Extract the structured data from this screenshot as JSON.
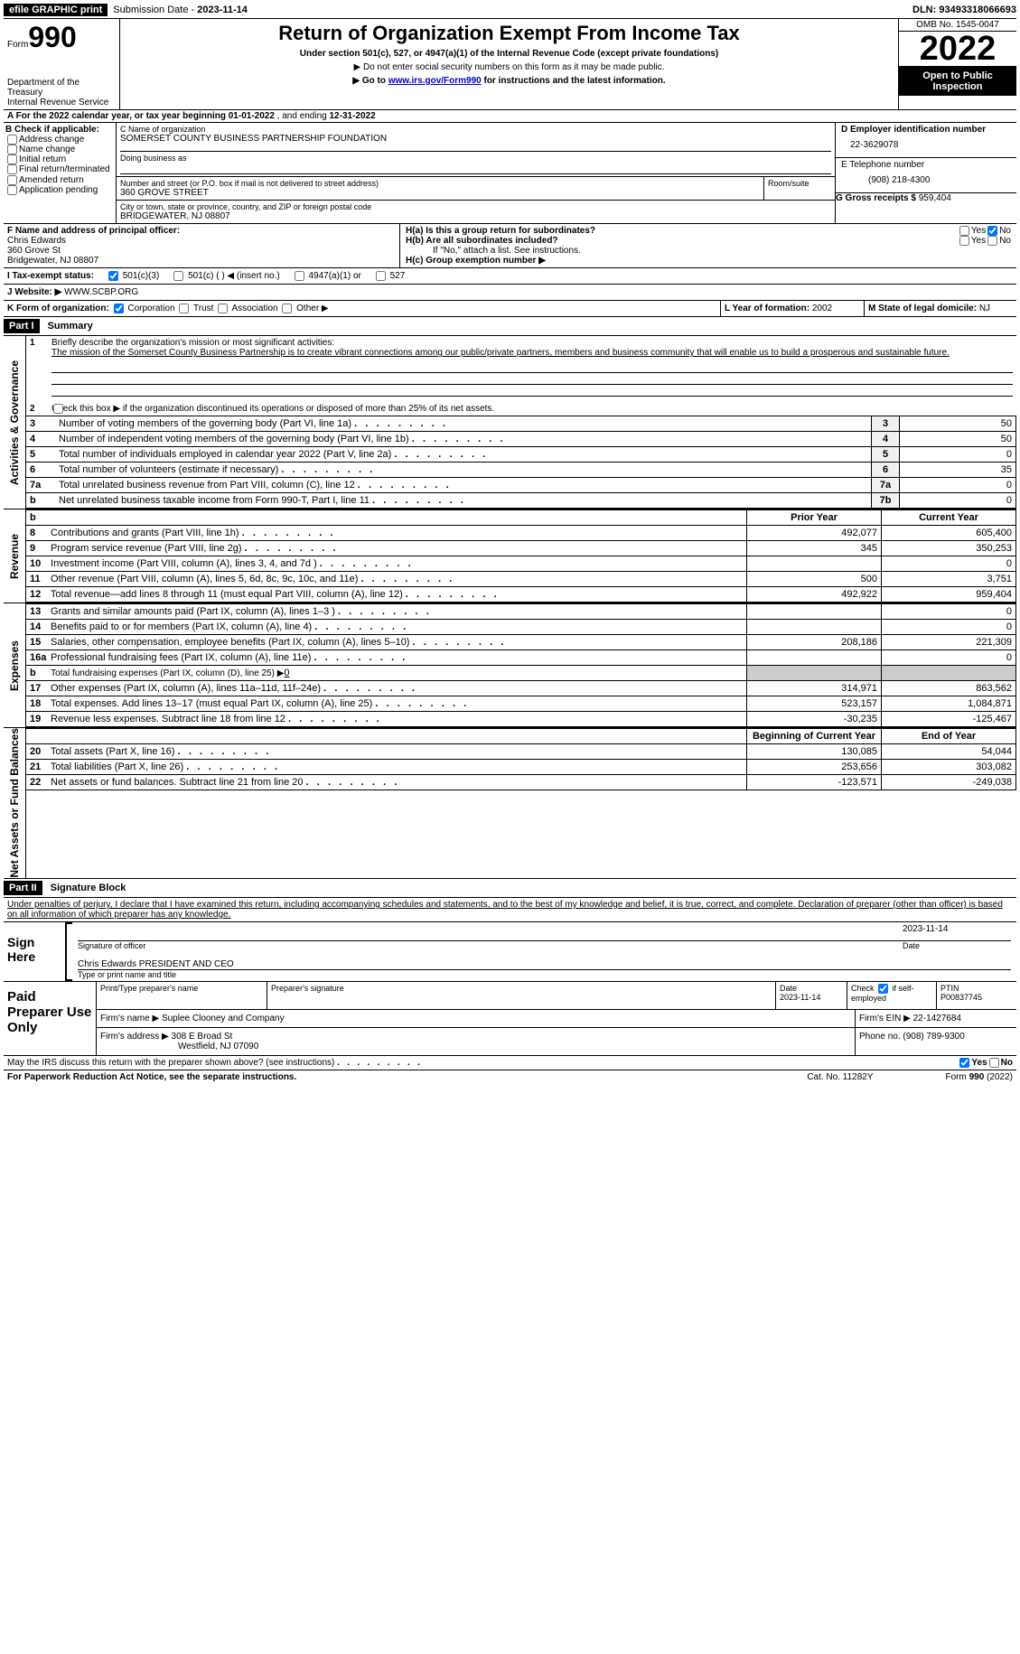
{
  "top_bar": {
    "efile": "efile GRAPHIC print",
    "sub_label": "Submission Date - ",
    "sub_date": "2023-11-14",
    "dln_label": "DLN: ",
    "dln": "93493318066693"
  },
  "header": {
    "form_word": "Form",
    "form_num": "990",
    "dept": "Department of the Treasury",
    "irs": "Internal Revenue Service",
    "title": "Return of Organization Exempt From Income Tax",
    "subtitle": "Under section 501(c), 527, or 4947(a)(1) of the Internal Revenue Code (except private foundations)",
    "note1": "▶ Do not enter social security numbers on this form as it may be made public.",
    "note2_pre": "▶ Go to ",
    "note2_link": "www.irs.gov/Form990",
    "note2_post": " for instructions and the latest information.",
    "omb": "OMB No. 1545-0047",
    "year": "2022",
    "open": "Open to Public Inspection"
  },
  "A": {
    "line": "A For the 2022 calendar year, or tax year beginning ",
    "begin": "01-01-2022",
    "mid": "  , and ending ",
    "end": "12-31-2022"
  },
  "B": {
    "label": "B Check if applicable:",
    "c1": "Address change",
    "c2": "Name change",
    "c3": "Initial return",
    "c4": "Final return/terminated",
    "c5": "Amended return",
    "c6": "Application pending"
  },
  "C": {
    "name_label": "C Name of organization",
    "name": "SOMERSET COUNTY BUSINESS PARTNERSHIP FOUNDATION",
    "dba_label": "Doing business as",
    "addr_label": "Number and street (or P.O. box if mail is not delivered to street address)",
    "room_label": "Room/suite",
    "addr": "360 GROVE STREET",
    "city_label": "City or town, state or province, country, and ZIP or foreign postal code",
    "city": "BRIDGEWATER, NJ  08807"
  },
  "D": {
    "label": "D Employer identification number",
    "val": "22-3629078"
  },
  "E": {
    "label": "E Telephone number",
    "val": "(908) 218-4300"
  },
  "G": {
    "label": "G Gross receipts $ ",
    "val": "959,404"
  },
  "F": {
    "label": "F  Name and address of principal officer:",
    "l1": "Chris Edwards",
    "l2": "360 Grove St",
    "l3": "Bridgewater, NJ  08807"
  },
  "H": {
    "a": "H(a)  Is this a group return for subordinates?",
    "b": "H(b)  Are all subordinates included?",
    "b_note": "If \"No,\" attach a list. See instructions.",
    "c": "H(c)  Group exemption number ▶"
  },
  "I": {
    "label": "I   Tax-exempt status:",
    "c1": "501(c)(3)",
    "c2": "501(c) (  ) ◀ (insert no.)",
    "c3": "4947(a)(1) or",
    "c4": "527"
  },
  "J": {
    "label": "J   Website: ▶",
    "val": "  WWW.SCBP.ORG"
  },
  "K": {
    "label": "K Form of organization:",
    "c1": "Corporation",
    "c2": "Trust",
    "c3": "Association",
    "c4": "Other ▶"
  },
  "L": {
    "label": "L Year of formation: ",
    "val": "2002"
  },
  "M": {
    "label": "M State of legal domicile: ",
    "val": "NJ"
  },
  "part1": {
    "label": "Part I",
    "title": "Summary"
  },
  "sec1": {
    "vert": "Activities & Governance",
    "l1": "Briefly describe the organization's mission or most significant activities:",
    "mission": "The mission of the Somerset County Business Partnership is to create vibrant connections among our public/private partners, members and business community that will enable us to build a prosperous and sustainable future.",
    "l2": "Check this box ▶      if the organization discontinued its operations or disposed of more than 25% of its net assets.",
    "rows": [
      {
        "n": "3",
        "t": "Number of voting members of the governing body (Part VI, line 1a)",
        "b": "3",
        "v": "50"
      },
      {
        "n": "4",
        "t": "Number of independent voting members of the governing body (Part VI, line 1b)",
        "b": "4",
        "v": "50"
      },
      {
        "n": "5",
        "t": "Total number of individuals employed in calendar year 2022 (Part V, line 2a)",
        "b": "5",
        "v": "0"
      },
      {
        "n": "6",
        "t": "Total number of volunteers (estimate if necessary)",
        "b": "6",
        "v": "35"
      },
      {
        "n": "7a",
        "t": "Total unrelated business revenue from Part VIII, column (C), line 12",
        "b": "7a",
        "v": "0"
      },
      {
        "n": "b",
        "t": "Net unrelated business taxable income from Form 990-T, Part I, line 11",
        "b": "7b",
        "v": "0"
      }
    ]
  },
  "cols": {
    "b": "b",
    "py": "Prior Year",
    "cy": "Current Year",
    "bcy": "Beginning of Current Year",
    "eoy": "End of Year"
  },
  "rev": {
    "vert": "Revenue",
    "rows": [
      {
        "n": "8",
        "t": "Contributions and grants (Part VIII, line 1h)",
        "py": "492,077",
        "cy": "605,400"
      },
      {
        "n": "9",
        "t": "Program service revenue (Part VIII, line 2g)",
        "py": "345",
        "cy": "350,253"
      },
      {
        "n": "10",
        "t": "Investment income (Part VIII, column (A), lines 3, 4, and 7d )",
        "py": "",
        "cy": "0"
      },
      {
        "n": "11",
        "t": "Other revenue (Part VIII, column (A), lines 5, 6d, 8c, 9c, 10c, and 11e)",
        "py": "500",
        "cy": "3,751"
      },
      {
        "n": "12",
        "t": "Total revenue—add lines 8 through 11 (must equal Part VIII, column (A), line 12)",
        "py": "492,922",
        "cy": "959,404"
      }
    ]
  },
  "exp": {
    "vert": "Expenses",
    "rows": [
      {
        "n": "13",
        "t": "Grants and similar amounts paid (Part IX, column (A), lines 1–3 )",
        "py": "",
        "cy": "0"
      },
      {
        "n": "14",
        "t": "Benefits paid to or for members (Part IX, column (A), line 4)",
        "py": "",
        "cy": "0"
      },
      {
        "n": "15",
        "t": "Salaries, other compensation, employee benefits (Part IX, column (A), lines 5–10)",
        "py": "208,186",
        "cy": "221,309"
      },
      {
        "n": "16a",
        "t": "Professional fundraising fees (Part IX, column (A), line 11e)",
        "py": "",
        "cy": "0"
      },
      {
        "n": "b",
        "t": "Total fundraising expenses (Part IX, column (D), line 25) ▶",
        "extra": "0",
        "gray": true
      },
      {
        "n": "17",
        "t": "Other expenses (Part IX, column (A), lines 11a–11d, 11f–24e)",
        "py": "314,971",
        "cy": "863,562"
      },
      {
        "n": "18",
        "t": "Total expenses. Add lines 13–17 (must equal Part IX, column (A), line 25)",
        "py": "523,157",
        "cy": "1,084,871"
      },
      {
        "n": "19",
        "t": "Revenue less expenses. Subtract line 18 from line 12",
        "py": "-30,235",
        "cy": "-125,467"
      }
    ]
  },
  "nafb": {
    "vert": "Net Assets or Fund Balances",
    "rows": [
      {
        "n": "20",
        "t": "Total assets (Part X, line 16)",
        "py": "130,085",
        "cy": "54,044"
      },
      {
        "n": "21",
        "t": "Total liabilities (Part X, line 26)",
        "py": "253,656",
        "cy": "303,082"
      },
      {
        "n": "22",
        "t": "Net assets or fund balances. Subtract line 21 from line 20",
        "py": "-123,571",
        "cy": "-249,038"
      }
    ]
  },
  "part2": {
    "label": "Part II",
    "title": "Signature Block"
  },
  "penalties": "Under penalties of perjury, I declare that I have examined this return, including accompanying schedules and statements, and to the best of my knowledge and belief, it is true, correct, and complete. Declaration of preparer (other than officer) is based on all information of which preparer has any knowledge.",
  "sign": {
    "here": "Sign Here",
    "sig_label": "Signature of officer",
    "date": "2023-11-14",
    "date_label": "Date",
    "name": "Chris Edwards  PRESIDENT AND CEO",
    "name_label": "Type or print name and title"
  },
  "paid": {
    "here": "Paid Preparer Use Only",
    "c1": "Print/Type preparer's name",
    "c2": "Preparer's signature",
    "c3": "Date",
    "c3v": "2023-11-14",
    "c4": "Check       if self-employed",
    "c5": "PTIN",
    "c5v": "P00837745",
    "firm_label": "Firm's name   ▶ ",
    "firm": "Suplee Clooney and Company",
    "ein_label": "Firm's EIN ▶ ",
    "ein": "22-1427684",
    "addr_label": "Firm's address ▶ ",
    "addr1": "308 E Broad St",
    "addr2": "Westfield, NJ  07090",
    "ph_label": "Phone no. ",
    "ph": "(908) 789-9300"
  },
  "footer": {
    "q": "May the IRS discuss this return with the preparer shown above? (see instructions)",
    "pra": "For Paperwork Reduction Act Notice, see the separate instructions.",
    "cat": "Cat. No. 11282Y",
    "form": "Form 990 (2022)",
    "yes": "Yes",
    "no": "No"
  }
}
